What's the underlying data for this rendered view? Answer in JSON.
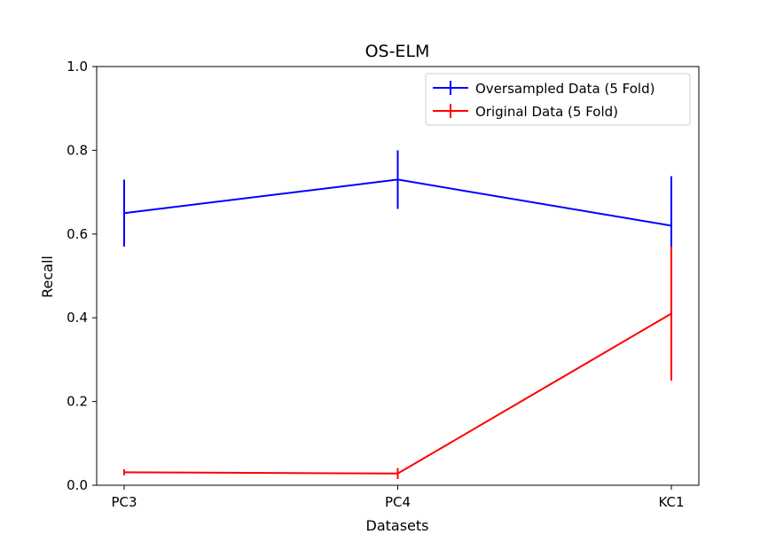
{
  "chart_data": {
    "type": "line",
    "title": "OS-ELM",
    "xlabel": "Datasets",
    "ylabel": "Recall",
    "categories": [
      "PC3",
      "PC4",
      "KC1"
    ],
    "ylim": [
      0.0,
      1.0
    ],
    "yticks": [
      "0.0",
      "0.2",
      "0.4",
      "0.6",
      "0.8",
      "1.0"
    ],
    "grid": false,
    "legend_position": "top-right",
    "error_bars": true,
    "series": [
      {
        "name": "Oversampled Data (5 Fold)",
        "color": "#0000ff",
        "values": [
          0.65,
          0.73,
          0.62
        ],
        "errors": [
          0.08,
          0.07,
          0.118
        ]
      },
      {
        "name": "Original Data (5 Fold)",
        "color": "#ff0000",
        "values": [
          0.031,
          0.028,
          0.41
        ],
        "errors": [
          0.007,
          0.013,
          0.16
        ]
      }
    ]
  }
}
